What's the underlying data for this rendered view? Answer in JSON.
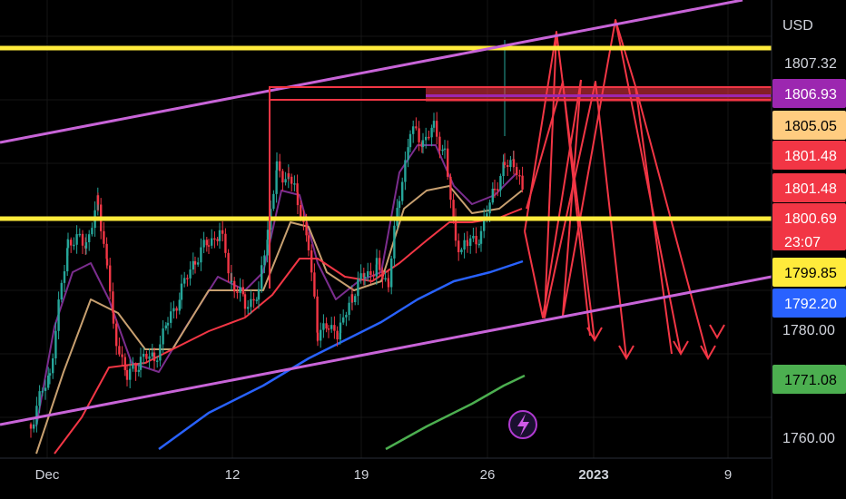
{
  "chart_data": {
    "type": "candlestick",
    "currency": "USD",
    "x_labels": [
      {
        "label": "Dec",
        "bold": false
      },
      {
        "label": "12",
        "bold": false
      },
      {
        "label": "19",
        "bold": false
      },
      {
        "label": "26",
        "bold": false
      },
      {
        "label": "2023",
        "bold": true
      },
      {
        "label": "9",
        "bold": false
      }
    ],
    "y_ticks": [
      "1780.00",
      "1760.00"
    ],
    "price_tags": [
      {
        "value": "1807.32",
        "bg": "#000000",
        "fg": "#d1d4dc"
      },
      {
        "value": "1806.93",
        "bg": "#9c27b0",
        "fg": "#ffffff"
      },
      {
        "value": "1805.05",
        "bg": "#ffcc80",
        "fg": "#000000"
      },
      {
        "value": "1801.48",
        "bg": "#f23645",
        "fg": "#ffffff"
      },
      {
        "value": "1801.48",
        "bg": "#f23645",
        "fg": "#ffffff"
      },
      {
        "value": "1800.69",
        "bg": "#f23645",
        "fg": "#ffffff",
        "countdown": "23:07"
      },
      {
        "value": "1799.85",
        "bg": "#ffeb3b",
        "fg": "#000000"
      },
      {
        "value": "1792.20",
        "bg": "#2962ff",
        "fg": "#ffffff"
      },
      {
        "value": "1771.08",
        "bg": "#4caf50",
        "fg": "#000000"
      }
    ],
    "horizontal_levels": [
      1807.3,
      1800.5
    ],
    "colors": {
      "up": "#26a69a",
      "down": "#f23645",
      "level": "#ffeb3b",
      "channel": "#c864d8",
      "projection": "#f23645"
    }
  }
}
